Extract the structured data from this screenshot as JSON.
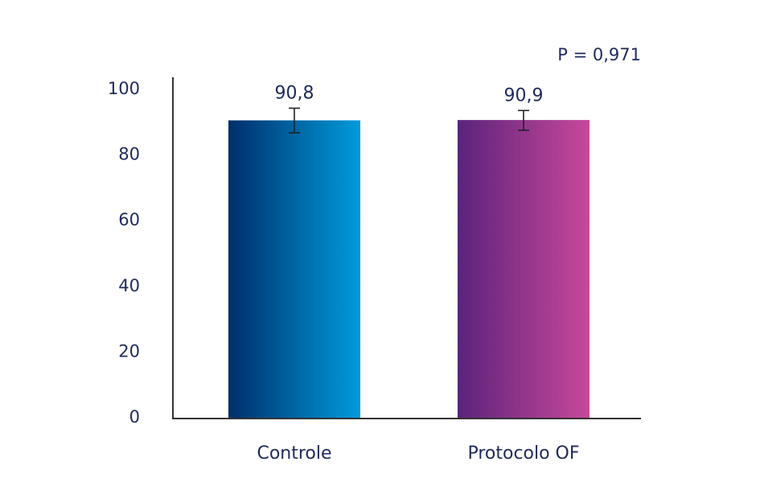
{
  "chart_data": {
    "type": "bar",
    "categories": [
      "Controle",
      "Protocolo OF"
    ],
    "values": [
      90.8,
      90.9
    ],
    "value_labels": [
      "90,8",
      "90,9"
    ],
    "error": [
      {
        "low": 87.0,
        "high": 94.5
      },
      {
        "low": 87.8,
        "high": 93.8
      }
    ],
    "ylim": [
      0,
      100
    ],
    "yticks": [
      0,
      20,
      40,
      60,
      80,
      100
    ],
    "ytick_labels": [
      "0",
      "20",
      "40",
      "60",
      "80",
      "100"
    ],
    "annotation": "P = 0,971",
    "grid": false,
    "colors": {
      "text": "#1f2a5c",
      "axis": "#333333",
      "bar1_start": "#002e6b",
      "bar1_end": "#009bdc",
      "bar2_start": "#5a237a",
      "bar2_end": "#c8489a"
    }
  }
}
